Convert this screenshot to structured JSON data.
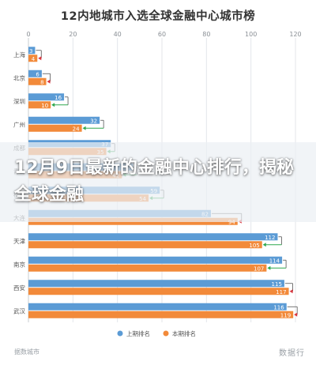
{
  "chart_data": {
    "type": "bar",
    "title": "12内地城市入选全球金融中心城市榜",
    "categories": [
      "上海",
      "北京",
      "深圳",
      "广州",
      "成都",
      "青岛",
      "杭州",
      "大连",
      "天津",
      "南京",
      "西安",
      "武汉"
    ],
    "series": [
      {
        "name": "上期排名",
        "color": "#5b9bd5",
        "values": [
          3,
          6,
          16,
          32,
          37,
          47,
          59,
          82,
          112,
          114,
          115,
          116
        ]
      },
      {
        "name": "本期排名",
        "color": "#f28a3a",
        "values": [
          4,
          8,
          10,
          24,
          35,
          42,
          54,
          94,
          105,
          107,
          117,
          119
        ]
      }
    ],
    "xlim": [
      0,
      120
    ],
    "xticks": [
      0,
      20,
      40,
      60,
      80,
      100,
      120
    ],
    "grid": true,
    "legend": "bottom"
  },
  "overlay": {
    "text": "12月9日最新的金融中心排行，揭秘全球金融"
  },
  "footer": {
    "source": "据数城市",
    "brand": "数据行"
  }
}
